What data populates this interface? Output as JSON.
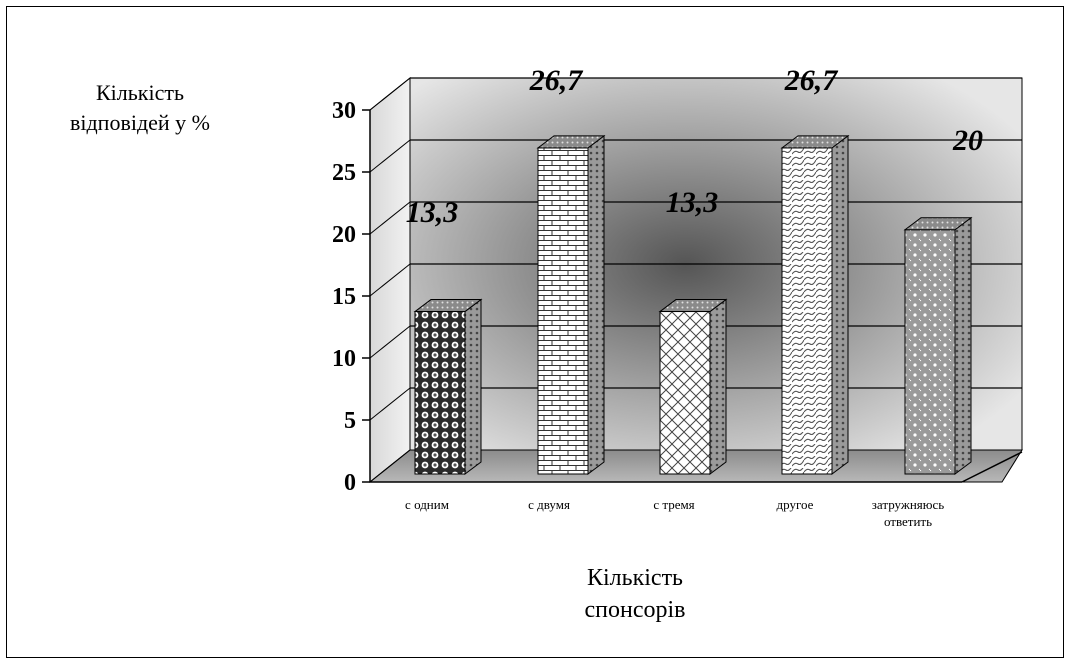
{
  "chart_data": {
    "type": "bar",
    "title": "",
    "xlabel": "Кількість\nспонсорів",
    "ylabel": "Кількість\nвідповідей у  %",
    "ylim": [
      0,
      30
    ],
    "yticks": [
      0,
      5,
      10,
      15,
      20,
      25,
      30
    ],
    "grid": true,
    "categories": [
      "с одним",
      "с двумя",
      "с тремя",
      "другое",
      "затружняюсь ответить"
    ],
    "values": [
      13.3,
      26.7,
      13.3,
      26.7,
      20
    ],
    "data_labels": [
      "13,3",
      "26,7",
      "13,3",
      "26,7",
      "20"
    ],
    "colors": {
      "wall_light": "#e9e9e9",
      "wall_dark": "#5a5a5a",
      "floor": "#9a9a9a",
      "bar_face": "#ffffff",
      "bar_pattern": "#222222"
    }
  }
}
